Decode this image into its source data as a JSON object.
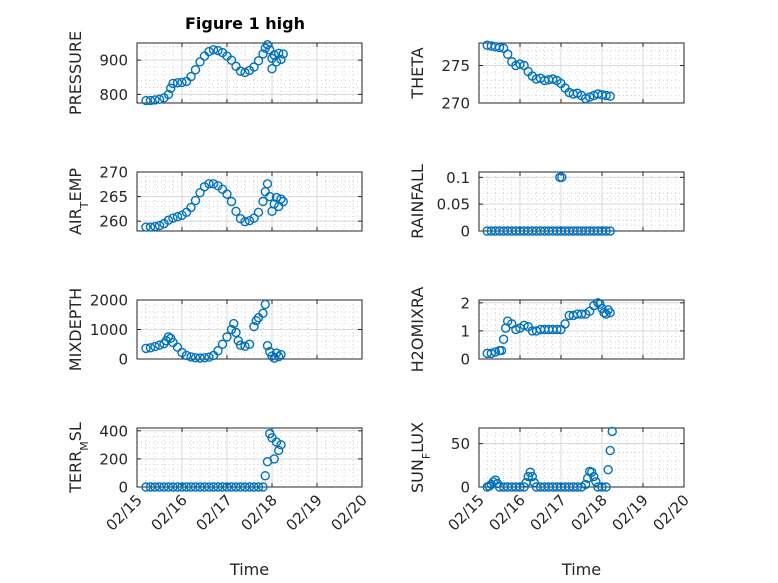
{
  "figure": {
    "title": "Figure 1 high",
    "marker_color": "#0072BD",
    "xlabel": "Time"
  },
  "chart_data": [
    {
      "type": "scatter",
      "name": "PRESSURE",
      "ylabel": "PRESSURE",
      "ylim": [
        775,
        950
      ],
      "yticks": [
        800,
        900
      ],
      "xlim": [
        0,
        5
      ],
      "grid": true,
      "xticks": [
        "02/15",
        "02/16",
        "02/17",
        "02/18",
        "02/19",
        "02/20"
      ],
      "show_xticks": false,
      "points": [
        [
          0.2,
          782
        ],
        [
          0.3,
          782
        ],
        [
          0.4,
          784
        ],
        [
          0.5,
          786
        ],
        [
          0.6,
          790
        ],
        [
          0.7,
          800
        ],
        [
          0.75,
          818
        ],
        [
          0.8,
          832
        ],
        [
          0.9,
          834
        ],
        [
          1.0,
          835
        ],
        [
          1.1,
          838
        ],
        [
          1.2,
          852
        ],
        [
          1.3,
          872
        ],
        [
          1.4,
          895
        ],
        [
          1.5,
          912
        ],
        [
          1.6,
          925
        ],
        [
          1.7,
          930
        ],
        [
          1.8,
          928
        ],
        [
          1.9,
          922
        ],
        [
          2.0,
          912
        ],
        [
          2.1,
          900
        ],
        [
          2.2,
          882
        ],
        [
          2.3,
          868
        ],
        [
          2.4,
          864
        ],
        [
          2.5,
          870
        ],
        [
          2.6,
          880
        ],
        [
          2.7,
          898
        ],
        [
          2.8,
          918
        ],
        [
          2.85,
          935
        ],
        [
          2.9,
          945
        ],
        [
          2.95,
          930
        ],
        [
          3.0,
          905
        ],
        [
          3.0,
          875
        ],
        [
          3.05,
          915
        ],
        [
          3.1,
          895
        ],
        [
          3.15,
          920
        ],
        [
          3.2,
          902
        ],
        [
          3.25,
          918
        ]
      ]
    },
    {
      "type": "scatter",
      "name": "THETA",
      "ylabel": "THETA",
      "ylim": [
        270,
        278
      ],
      "yticks": [
        270,
        275
      ],
      "xlim": [
        0,
        5
      ],
      "grid": true,
      "xticks": [
        "02/15",
        "02/16",
        "02/17",
        "02/18",
        "02/19",
        "02/20"
      ],
      "show_xticks": false,
      "points": [
        [
          0.2,
          277.7
        ],
        [
          0.3,
          277.6
        ],
        [
          0.4,
          277.5
        ],
        [
          0.5,
          277.4
        ],
        [
          0.6,
          277.3
        ],
        [
          0.7,
          276.5
        ],
        [
          0.8,
          275.5
        ],
        [
          0.9,
          275.0
        ],
        [
          1.0,
          275.2
        ],
        [
          1.1,
          275.0
        ],
        [
          1.2,
          274.2
        ],
        [
          1.3,
          273.6
        ],
        [
          1.4,
          273.2
        ],
        [
          1.5,
          273.3
        ],
        [
          1.6,
          273.0
        ],
        [
          1.7,
          273.1
        ],
        [
          1.8,
          273.2
        ],
        [
          1.9,
          273.0
        ],
        [
          2.0,
          272.6
        ],
        [
          2.1,
          272.0
        ],
        [
          2.2,
          271.4
        ],
        [
          2.3,
          271.2
        ],
        [
          2.4,
          271.3
        ],
        [
          2.5,
          271.0
        ],
        [
          2.6,
          270.6
        ],
        [
          2.7,
          270.8
        ],
        [
          2.8,
          271.0
        ],
        [
          2.9,
          271.2
        ],
        [
          3.0,
          271.1
        ],
        [
          3.1,
          271.0
        ],
        [
          3.2,
          270.9
        ]
      ]
    },
    {
      "type": "scatter",
      "name": "AIR_TEMP",
      "ylabel": "AIR_TEMP",
      "ylim": [
        258,
        270
      ],
      "yticks": [
        260,
        265,
        270
      ],
      "xlim": [
        0,
        5
      ],
      "grid": true,
      "xticks": [
        "02/15",
        "02/16",
        "02/17",
        "02/18",
        "02/19",
        "02/20"
      ],
      "show_xticks": false,
      "points": [
        [
          0.2,
          258.8
        ],
        [
          0.3,
          258.8
        ],
        [
          0.4,
          258.9
        ],
        [
          0.5,
          259.1
        ],
        [
          0.6,
          259.5
        ],
        [
          0.7,
          260.2
        ],
        [
          0.8,
          260.6
        ],
        [
          0.9,
          260.9
        ],
        [
          1.0,
          261.2
        ],
        [
          1.1,
          261.8
        ],
        [
          1.2,
          262.8
        ],
        [
          1.3,
          264.2
        ],
        [
          1.4,
          265.8
        ],
        [
          1.5,
          267.0
        ],
        [
          1.6,
          267.6
        ],
        [
          1.7,
          267.6
        ],
        [
          1.8,
          267.2
        ],
        [
          1.9,
          266.5
        ],
        [
          2.0,
          265.5
        ],
        [
          2.1,
          264.0
        ],
        [
          2.2,
          262.0
        ],
        [
          2.3,
          260.5
        ],
        [
          2.4,
          259.9
        ],
        [
          2.5,
          260.1
        ],
        [
          2.6,
          260.6
        ],
        [
          2.7,
          261.8
        ],
        [
          2.8,
          264.0
        ],
        [
          2.85,
          266.0
        ],
        [
          2.9,
          267.6
        ],
        [
          2.95,
          265.0
        ],
        [
          3.0,
          262.0
        ],
        [
          3.05,
          263.5
        ],
        [
          3.1,
          264.8
        ],
        [
          3.15,
          263.0
        ],
        [
          3.2,
          264.5
        ],
        [
          3.25,
          264.0
        ]
      ]
    },
    {
      "type": "scatter",
      "name": "RAINFALL",
      "ylabel": "RAINFALL",
      "ylim": [
        0,
        0.11
      ],
      "yticks": [
        0,
        0.05,
        0.1
      ],
      "xlim": [
        0,
        5
      ],
      "grid": true,
      "xticks": [
        "02/15",
        "02/16",
        "02/17",
        "02/18",
        "02/19",
        "02/20"
      ],
      "show_xticks": false,
      "points": [
        [
          0.2,
          0
        ],
        [
          0.3,
          0
        ],
        [
          0.4,
          0
        ],
        [
          0.5,
          0
        ],
        [
          0.6,
          0
        ],
        [
          0.7,
          0
        ],
        [
          0.8,
          0
        ],
        [
          0.9,
          0
        ],
        [
          1.0,
          0
        ],
        [
          1.1,
          0
        ],
        [
          1.2,
          0
        ],
        [
          1.3,
          0
        ],
        [
          1.4,
          0
        ],
        [
          1.5,
          0
        ],
        [
          1.6,
          0
        ],
        [
          1.7,
          0
        ],
        [
          1.8,
          0
        ],
        [
          1.9,
          0
        ],
        [
          2.0,
          0
        ],
        [
          2.1,
          0
        ],
        [
          2.2,
          0
        ],
        [
          2.3,
          0
        ],
        [
          2.4,
          0
        ],
        [
          2.5,
          0
        ],
        [
          2.6,
          0
        ],
        [
          2.7,
          0
        ],
        [
          2.8,
          0
        ],
        [
          2.9,
          0
        ],
        [
          3.0,
          0
        ],
        [
          3.1,
          0
        ],
        [
          3.2,
          0
        ],
        [
          1.97,
          0.1
        ],
        [
          2.02,
          0.1
        ]
      ]
    },
    {
      "type": "scatter",
      "name": "MIXDEPTH",
      "ylabel": "MIXDEPTH",
      "ylim": [
        0,
        2000
      ],
      "yticks": [
        0,
        1000,
        2000
      ],
      "xlim": [
        0,
        5
      ],
      "grid": true,
      "xticks": [
        "02/15",
        "02/16",
        "02/17",
        "02/18",
        "02/19",
        "02/20"
      ],
      "show_xticks": false,
      "points": [
        [
          0.2,
          360
        ],
        [
          0.3,
          380
        ],
        [
          0.4,
          420
        ],
        [
          0.5,
          470
        ],
        [
          0.6,
          520
        ],
        [
          0.65,
          620
        ],
        [
          0.7,
          750
        ],
        [
          0.75,
          700
        ],
        [
          0.8,
          560
        ],
        [
          0.9,
          400
        ],
        [
          1.0,
          220
        ],
        [
          1.1,
          120
        ],
        [
          1.2,
          70
        ],
        [
          1.3,
          40
        ],
        [
          1.4,
          30
        ],
        [
          1.5,
          40
        ],
        [
          1.6,
          60
        ],
        [
          1.7,
          120
        ],
        [
          1.8,
          280
        ],
        [
          1.9,
          500
        ],
        [
          2.0,
          750
        ],
        [
          2.1,
          1000
        ],
        [
          2.15,
          1200
        ],
        [
          2.2,
          900
        ],
        [
          2.25,
          620
        ],
        [
          2.3,
          470
        ],
        [
          2.4,
          430
        ],
        [
          2.5,
          500
        ],
        [
          2.6,
          1100
        ],
        [
          2.65,
          1300
        ],
        [
          2.7,
          1400
        ],
        [
          2.8,
          1550
        ],
        [
          2.85,
          1850
        ],
        [
          2.9,
          450
        ],
        [
          2.95,
          250
        ],
        [
          3.0,
          100
        ],
        [
          3.05,
          30
        ],
        [
          3.1,
          200
        ],
        [
          3.15,
          80
        ],
        [
          3.2,
          150
        ]
      ]
    },
    {
      "type": "scatter",
      "name": "H2OMIXRA",
      "ylabel": "H2OMIXRA",
      "ylim": [
        0,
        2.1
      ],
      "yticks": [
        0,
        1,
        2
      ],
      "xlim": [
        0,
        5
      ],
      "grid": true,
      "xticks": [
        "02/15",
        "02/16",
        "02/17",
        "02/18",
        "02/19",
        "02/20"
      ],
      "show_xticks": false,
      "points": [
        [
          0.2,
          0.2
        ],
        [
          0.3,
          0.2
        ],
        [
          0.4,
          0.25
        ],
        [
          0.5,
          0.3
        ],
        [
          0.55,
          0.3
        ],
        [
          0.6,
          0.7
        ],
        [
          0.65,
          1.1
        ],
        [
          0.7,
          1.35
        ],
        [
          0.8,
          1.25
        ],
        [
          0.9,
          1.05
        ],
        [
          1.0,
          1.1
        ],
        [
          1.1,
          1.2
        ],
        [
          1.2,
          1.15
        ],
        [
          1.3,
          1.0
        ],
        [
          1.4,
          1.0
        ],
        [
          1.5,
          1.05
        ],
        [
          1.6,
          1.05
        ],
        [
          1.7,
          1.05
        ],
        [
          1.8,
          1.05
        ],
        [
          1.9,
          1.05
        ],
        [
          2.0,
          1.05
        ],
        [
          2.1,
          1.25
        ],
        [
          2.2,
          1.55
        ],
        [
          2.3,
          1.55
        ],
        [
          2.4,
          1.6
        ],
        [
          2.5,
          1.6
        ],
        [
          2.6,
          1.6
        ],
        [
          2.7,
          1.7
        ],
        [
          2.8,
          1.9
        ],
        [
          2.9,
          2.0
        ],
        [
          2.95,
          1.95
        ],
        [
          3.0,
          1.8
        ],
        [
          3.05,
          1.65
        ],
        [
          3.1,
          1.6
        ],
        [
          3.15,
          1.75
        ],
        [
          3.2,
          1.65
        ]
      ]
    },
    {
      "type": "scatter",
      "name": "TERR_MSL",
      "ylabel": "TERR_MSL",
      "ylim": [
        0,
        420
      ],
      "yticks": [
        0,
        200,
        400
      ],
      "xlim": [
        0,
        5
      ],
      "grid": true,
      "xticks": [
        "02/15",
        "02/16",
        "02/17",
        "02/18",
        "02/19",
        "02/20"
      ],
      "show_xticks": true,
      "points": [
        [
          0.2,
          0
        ],
        [
          0.3,
          0
        ],
        [
          0.4,
          0
        ],
        [
          0.5,
          0
        ],
        [
          0.6,
          0
        ],
        [
          0.7,
          0
        ],
        [
          0.8,
          0
        ],
        [
          0.9,
          0
        ],
        [
          1.0,
          0
        ],
        [
          1.1,
          0
        ],
        [
          1.2,
          0
        ],
        [
          1.3,
          0
        ],
        [
          1.4,
          0
        ],
        [
          1.5,
          0
        ],
        [
          1.6,
          0
        ],
        [
          1.7,
          0
        ],
        [
          1.8,
          0
        ],
        [
          1.9,
          0
        ],
        [
          2.0,
          0
        ],
        [
          2.1,
          0
        ],
        [
          2.2,
          0
        ],
        [
          2.3,
          0
        ],
        [
          2.4,
          0
        ],
        [
          2.5,
          0
        ],
        [
          2.6,
          0
        ],
        [
          2.7,
          0
        ],
        [
          2.8,
          0
        ],
        [
          2.85,
          80
        ],
        [
          2.9,
          180
        ],
        [
          2.95,
          380
        ],
        [
          3.0,
          350
        ],
        [
          3.05,
          200
        ],
        [
          3.1,
          320
        ],
        [
          3.15,
          260
        ],
        [
          3.2,
          300
        ]
      ]
    },
    {
      "type": "scatter",
      "name": "SUN_FLUX",
      "ylabel": "SUN_FLUX",
      "ylim": [
        0,
        68
      ],
      "yticks": [
        0,
        50
      ],
      "xlim": [
        0,
        5
      ],
      "grid": true,
      "xticks": [
        "02/15",
        "02/16",
        "02/17",
        "02/18",
        "02/19",
        "02/20"
      ],
      "show_xticks": true,
      "points": [
        [
          0.2,
          0
        ],
        [
          0.25,
          1
        ],
        [
          0.3,
          3
        ],
        [
          0.35,
          6
        ],
        [
          0.4,
          8
        ],
        [
          0.45,
          4
        ],
        [
          0.5,
          0
        ],
        [
          0.6,
          0
        ],
        [
          0.7,
          0
        ],
        [
          0.8,
          0
        ],
        [
          0.9,
          0
        ],
        [
          1.0,
          0
        ],
        [
          1.1,
          0
        ],
        [
          1.15,
          5
        ],
        [
          1.2,
          12
        ],
        [
          1.25,
          17
        ],
        [
          1.3,
          12
        ],
        [
          1.35,
          5
        ],
        [
          1.4,
          0
        ],
        [
          1.5,
          0
        ],
        [
          1.6,
          0
        ],
        [
          1.7,
          0
        ],
        [
          1.8,
          0
        ],
        [
          1.9,
          0
        ],
        [
          2.0,
          0
        ],
        [
          2.1,
          0
        ],
        [
          2.2,
          0
        ],
        [
          2.3,
          0
        ],
        [
          2.4,
          0
        ],
        [
          2.5,
          0
        ],
        [
          2.6,
          3
        ],
        [
          2.65,
          10
        ],
        [
          2.7,
          18
        ],
        [
          2.75,
          17
        ],
        [
          2.8,
          12
        ],
        [
          2.85,
          6
        ],
        [
          2.9,
          0
        ],
        [
          3.0,
          0
        ],
        [
          3.1,
          0
        ],
        [
          3.15,
          20
        ],
        [
          3.2,
          42
        ],
        [
          3.25,
          64
        ]
      ]
    }
  ]
}
